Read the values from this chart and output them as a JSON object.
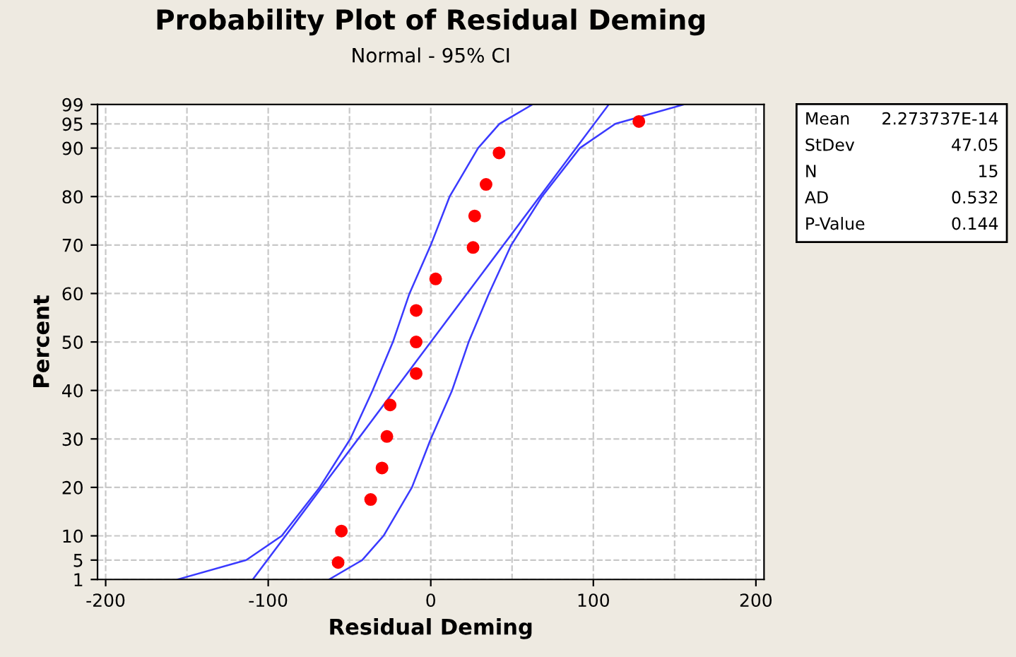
{
  "chart_data": {
    "type": "scatter",
    "title": "Probability Plot of Residual Deming",
    "subtitle": "Normal - 95% CI",
    "xlabel": "Residual Deming",
    "ylabel": "Percent",
    "series": [
      {
        "color": "#ff0000",
        "marker": "circle",
        "x": [
          -57,
          -55,
          -37,
          -30,
          -27,
          -25,
          -9,
          -9,
          -9,
          3,
          26,
          27,
          34,
          42,
          128
        ],
        "values": [
          4.5,
          11,
          17.5,
          24,
          30.5,
          37,
          43.5,
          50,
          56.5,
          63,
          69.5,
          76,
          82.5,
          89,
          95.5
        ]
      },
      {
        "type": "line",
        "color": "#3a3aff",
        "line_style": "solid",
        "x": [
          -109.5,
          109.5
        ],
        "values": [
          1,
          99
        ]
      },
      {
        "type": "line",
        "color": "#3a3aff",
        "line_style": "solid",
        "x": [
          -155.7,
          -113.5,
          -91.7,
          -68.4,
          -49.5,
          -35.8,
          -23.3,
          -13.1,
          0,
          11.6,
          29.1,
          42.2,
          62.6
        ],
        "values": [
          1,
          5,
          10,
          20,
          30,
          40,
          50,
          60,
          70,
          80,
          90,
          95,
          99
        ]
      },
      {
        "type": "line",
        "color": "#3a3aff",
        "line_style": "solid",
        "x": [
          -62.6,
          -42.2,
          -29.1,
          -11.6,
          0,
          13.1,
          23.3,
          35.8,
          49.5,
          68.4,
          91.7,
          113.5,
          155.7
        ],
        "values": [
          1,
          5,
          10,
          20,
          30,
          40,
          50,
          60,
          70,
          80,
          90,
          95,
          99
        ]
      }
    ],
    "xlim": [
      -205,
      205
    ],
    "xticks": [
      -200,
      -100,
      0,
      100,
      200
    ],
    "ylim": [
      1,
      99
    ],
    "yticks": [
      1,
      5,
      10,
      20,
      30,
      40,
      50,
      60,
      70,
      80,
      90,
      95,
      99
    ],
    "grid": true,
    "legend": false,
    "annotations": [
      "Mean",
      "2.273737E-14",
      "StDev",
      "47.05",
      "N",
      "15",
      "AD",
      "0.532",
      "P-Value",
      "0.144"
    ]
  }
}
